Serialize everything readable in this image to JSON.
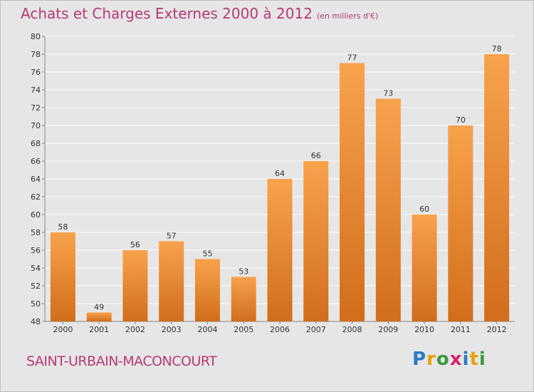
{
  "title": "Achats et Charges Externes 2000 à 2012",
  "subtitle": "(en milliers d'€)",
  "commune": "SAINT-URBAIN-MACONCOURT",
  "logo": {
    "text": "Proxiti",
    "colors": [
      "#2a7cc3",
      "#e8a000",
      "#3a9a3a",
      "#d6206f",
      "#2a7cc3",
      "#e8a000",
      "#3a9a3a"
    ]
  },
  "colors": {
    "title": "#b63a74",
    "bar_light": "#f8a24c",
    "bar_dark": "#d16d1b",
    "background": "#e6e6e6"
  },
  "chart_data": {
    "type": "bar",
    "categories": [
      "2000",
      "2001",
      "2002",
      "2003",
      "2004",
      "2005",
      "2006",
      "2007",
      "2008",
      "2009",
      "2010",
      "2011",
      "2012"
    ],
    "values": [
      58,
      49,
      56,
      57,
      55,
      53,
      64,
      66,
      77,
      73,
      60,
      70,
      78
    ],
    "title": "Achats et Charges Externes 2000 à 2012",
    "subtitle": "(en milliers d'€)",
    "ylim": [
      48,
      80
    ],
    "yticks": [
      48,
      50,
      52,
      54,
      56,
      58,
      60,
      62,
      64,
      66,
      68,
      70,
      72,
      74,
      76,
      78,
      80
    ],
    "grid": true,
    "legend": "none"
  }
}
